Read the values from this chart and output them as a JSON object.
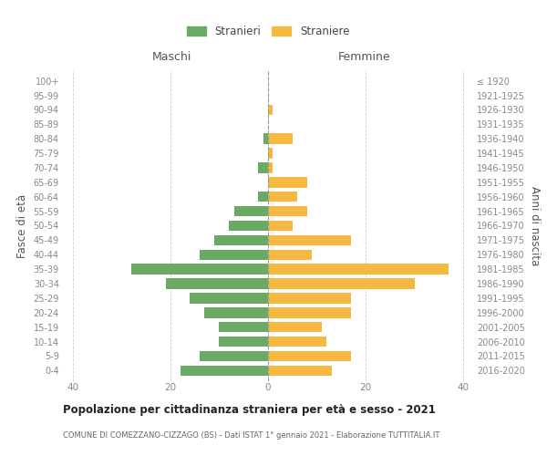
{
  "age_groups": [
    "0-4",
    "5-9",
    "10-14",
    "15-19",
    "20-24",
    "25-29",
    "30-34",
    "35-39",
    "40-44",
    "45-49",
    "50-54",
    "55-59",
    "60-64",
    "65-69",
    "70-74",
    "75-79",
    "80-84",
    "85-89",
    "90-94",
    "95-99",
    "100+"
  ],
  "birth_years": [
    "2016-2020",
    "2011-2015",
    "2006-2010",
    "2001-2005",
    "1996-2000",
    "1991-1995",
    "1986-1990",
    "1981-1985",
    "1976-1980",
    "1971-1975",
    "1966-1970",
    "1961-1965",
    "1956-1960",
    "1951-1955",
    "1946-1950",
    "1941-1945",
    "1936-1940",
    "1931-1935",
    "1926-1930",
    "1921-1925",
    "≤ 1920"
  ],
  "males": [
    18,
    14,
    10,
    10,
    13,
    16,
    21,
    28,
    14,
    11,
    8,
    7,
    2,
    0,
    2,
    0,
    1,
    0,
    0,
    0,
    0
  ],
  "females": [
    13,
    17,
    12,
    11,
    17,
    17,
    30,
    37,
    9,
    17,
    5,
    8,
    6,
    8,
    1,
    1,
    5,
    0,
    1,
    0,
    0
  ],
  "male_color": "#6aaa64",
  "female_color": "#f5b942",
  "grid_color": "#cccccc",
  "title": "Popolazione per cittadinanza straniera per età e sesso - 2021",
  "subtitle": "COMUNE DI COMEZZANO-CIZZAGO (BS) - Dati ISTAT 1° gennaio 2021 - Elaborazione TUTTITALIA.IT",
  "left_header": "Maschi",
  "right_header": "Femmine",
  "left_ylabel": "Fasce di età",
  "right_ylabel": "Anni di nascita",
  "xlim": 42,
  "legend_stranieri": "Stranieri",
  "legend_straniere": "Straniere"
}
